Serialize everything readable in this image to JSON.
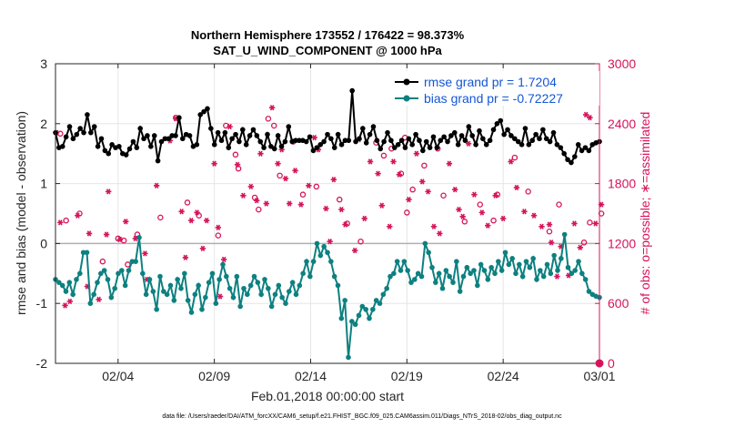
{
  "chart_data": {
    "type": "line",
    "title_line1": "Northern Hemisphere 173552 / 176422 = 98.373%",
    "title_line2": "SAT_U_WIND_COMPONENT @ 1000 hPa",
    "xlabel": "Feb.01,2018 00:00:00 start",
    "ylabel_left": "rmse and bias (model - observation)",
    "ylabel_right": "# of obs: o=possible; ∗=assimilated",
    "footer": "data file: /Users/raeder/DAI/ATM_forcXX/CAM6_setup/f.e21.FHIST_BGC.f09_025.CAM6assim.011/Diags_NTrS_2018-02/obs_diag_output.nc",
    "x_range_days": [
      0.25,
      28.5
    ],
    "x_ticks": [
      {
        "day": 3.5,
        "label": "02/04"
      },
      {
        "day": 8.5,
        "label": "02/09"
      },
      {
        "day": 13.5,
        "label": "02/14"
      },
      {
        "day": 18.5,
        "label": "02/19"
      },
      {
        "day": 23.5,
        "label": "02/24"
      },
      {
        "day": 28.5,
        "label": "03/01"
      }
    ],
    "ylim_left": [
      -2,
      3
    ],
    "yticks_left": [
      "-2",
      "-1",
      "0",
      "1",
      "2",
      "3"
    ],
    "ylim_right": [
      0,
      3000
    ],
    "yticks_right": [
      "0",
      "600",
      "1200",
      "1800",
      "2400",
      "3000"
    ],
    "colors": {
      "rmse": "#000000",
      "bias": "#0e8080",
      "obs": "#d6145a",
      "legend_text": "#1456d6",
      "axis": "#262626",
      "zero_line": "#b0b0b0"
    },
    "series": [
      {
        "name": "rmse grand pr = 1.7204",
        "values": [
          1.85,
          1.6,
          1.62,
          1.78,
          1.95,
          1.75,
          1.82,
          1.92,
          1.85,
          2.15,
          1.85,
          1.95,
          1.62,
          1.75,
          1.55,
          1.5,
          1.65,
          1.6,
          1.62,
          1.5,
          1.48,
          1.58,
          1.7,
          1.6,
          1.92,
          1.75,
          1.8,
          1.62,
          1.8,
          1.38,
          1.7,
          1.75,
          1.75,
          1.8,
          1.8,
          2.1,
          1.75,
          1.82,
          1.8,
          1.62,
          1.65,
          2.15,
          2.2,
          2.25,
          1.92,
          1.65,
          1.85,
          1.72,
          1.85,
          1.6,
          1.75,
          1.82,
          1.7,
          1.9,
          1.65,
          1.8,
          1.9,
          1.8,
          1.7,
          1.6,
          1.82,
          1.62,
          1.58,
          1.8,
          1.62,
          1.7,
          1.95,
          1.7,
          1.72,
          1.72,
          1.72,
          1.7,
          1.78,
          1.55,
          1.6,
          1.65,
          1.7,
          1.82,
          1.75,
          1.6,
          1.82,
          1.65,
          1.72,
          1.72,
          2.55,
          1.7,
          1.75,
          1.92,
          1.68,
          1.82,
          1.95,
          1.72,
          1.58,
          1.7,
          1.85,
          1.72,
          1.6,
          1.65,
          1.72,
          1.6,
          1.75,
          1.65,
          1.82,
          1.72,
          1.55,
          1.7,
          1.6,
          1.78,
          1.6,
          1.72,
          1.78,
          1.7,
          1.8,
          1.85,
          1.65,
          1.8,
          1.72,
          1.95,
          1.8,
          1.65,
          1.88,
          1.75,
          1.65,
          1.72,
          1.9,
          2.0,
          2.05,
          1.82,
          1.9,
          1.8,
          1.75,
          1.7,
          1.65,
          1.92,
          1.65,
          1.72,
          1.82,
          1.75,
          1.9,
          1.75,
          1.7,
          1.85,
          1.65,
          1.6,
          1.5,
          1.4,
          1.35,
          1.45,
          1.65,
          1.55,
          1.6,
          1.55,
          1.65,
          1.68,
          1.7
        ]
      },
      {
        "name": "bias grand pr = -0.72227",
        "values": [
          -0.6,
          -0.65,
          -0.7,
          -0.8,
          -0.65,
          -0.85,
          -0.6,
          -0.5,
          -0.15,
          -0.15,
          -1.0,
          -0.85,
          -0.65,
          -0.5,
          -0.45,
          -0.6,
          -0.9,
          -0.75,
          -0.5,
          -0.45,
          -0.7,
          -0.45,
          -0.3,
          -0.3,
          0.1,
          -0.5,
          -0.85,
          -0.6,
          -0.8,
          -1.1,
          -0.55,
          -0.8,
          -0.85,
          -0.7,
          -0.95,
          -0.6,
          -0.75,
          -0.5,
          -0.95,
          -1.15,
          -0.85,
          -0.7,
          -1.1,
          -0.9,
          -0.65,
          -0.5,
          -1.0,
          -0.6,
          -0.35,
          -0.55,
          -0.75,
          -0.9,
          -0.55,
          -1.05,
          -0.75,
          -0.85,
          -0.7,
          -0.55,
          -0.65,
          -0.85,
          -0.6,
          -0.75,
          -1.05,
          -0.85,
          -0.7,
          -0.9,
          -1.0,
          -0.8,
          -0.65,
          -0.85,
          -0.7,
          -0.5,
          -0.3,
          -0.55,
          -0.3,
          0.0,
          -0.2,
          -0.05,
          -0.15,
          -0.3,
          -0.55,
          -0.7,
          -1.25,
          -0.95,
          -1.9,
          -1.3,
          -1.35,
          -1.2,
          -1.05,
          -1.1,
          -1.25,
          -1.1,
          -0.95,
          -1.0,
          -0.85,
          -0.75,
          -0.55,
          -0.5,
          -0.3,
          -0.45,
          -0.3,
          -0.45,
          -0.65,
          -0.6,
          -0.5,
          -0.55,
          0.0,
          -0.15,
          -0.4,
          -0.65,
          -0.5,
          -0.75,
          -0.45,
          -0.55,
          -0.65,
          -0.3,
          -0.8,
          -0.55,
          -0.4,
          -0.5,
          -0.45,
          -0.7,
          -0.35,
          -0.45,
          -0.6,
          -0.4,
          -0.5,
          -0.3,
          -0.45,
          -0.15,
          -0.35,
          -0.25,
          -0.5,
          -0.35,
          -0.55,
          -0.3,
          -0.4,
          -0.25,
          -0.6,
          -0.45,
          -0.55,
          -0.35,
          -0.5,
          -0.2,
          -0.45,
          -0.25,
          0.15,
          -0.4,
          -0.5,
          -0.45,
          -0.3,
          -0.5,
          -0.6,
          -0.8,
          -0.85,
          -0.88,
          -0.9
        ]
      }
    ],
    "obs_possible": [
      [
        0.5,
        2300
      ],
      [
        0.8,
        1430
      ],
      [
        1.5,
        1500
      ],
      [
        2.7,
        1020
      ],
      [
        3.5,
        1250
      ],
      [
        3.8,
        1230
      ],
      [
        4.0,
        990
      ],
      [
        4.5,
        1290
      ],
      [
        5.7,
        1460
      ],
      [
        6.5,
        2460
      ],
      [
        7.1,
        1610
      ],
      [
        7.7,
        1480
      ],
      [
        8.7,
        1280
      ],
      [
        9.1,
        2380
      ],
      [
        9.6,
        2090
      ],
      [
        9.75,
        1950
      ],
      [
        10.6,
        1660
      ],
      [
        10.8,
        1540
      ],
      [
        11.3,
        2450
      ],
      [
        11.6,
        2380
      ],
      [
        11.9,
        1880
      ],
      [
        12.6,
        2220
      ],
      [
        13.1,
        1690
      ],
      [
        13.8,
        1770
      ],
      [
        15.0,
        1640
      ],
      [
        15.4,
        1400
      ],
      [
        16.1,
        1220
      ],
      [
        16.9,
        2210
      ],
      [
        17.3,
        2080
      ],
      [
        17.7,
        2150
      ],
      [
        18.2,
        1900
      ],
      [
        18.4,
        2260
      ],
      [
        18.5,
        1510
      ],
      [
        18.8,
        1740
      ],
      [
        19.4,
        1980
      ],
      [
        20.1,
        2150
      ],
      [
        20.4,
        1680
      ],
      [
        21.5,
        1420
      ],
      [
        22.3,
        1590
      ],
      [
        23.0,
        1430
      ],
      [
        23.2,
        1690
      ],
      [
        24.1,
        2060
      ],
      [
        24.8,
        1720
      ],
      [
        25.9,
        1320
      ],
      [
        26.4,
        1590
      ],
      [
        27.7,
        1210
      ],
      [
        28.0,
        1410
      ],
      [
        28.6,
        1500
      ]
    ],
    "obs_assimilated": [
      [
        0.3,
        2310
      ],
      [
        0.5,
        1410
      ],
      [
        0.75,
        580
      ],
      [
        1.0,
        620
      ],
      [
        1.4,
        1480
      ],
      [
        1.9,
        770
      ],
      [
        2.0,
        1300
      ],
      [
        2.5,
        640
      ],
      [
        2.9,
        1290
      ],
      [
        3.0,
        1720
      ],
      [
        3.6,
        1240
      ],
      [
        3.9,
        1420
      ],
      [
        4.4,
        1250
      ],
      [
        4.9,
        1100
      ],
      [
        5.0,
        840
      ],
      [
        5.5,
        1780
      ],
      [
        6.2,
        2230
      ],
      [
        6.5,
        2450
      ],
      [
        6.8,
        1520
      ],
      [
        7.0,
        1060
      ],
      [
        7.3,
        1430
      ],
      [
        7.6,
        1510
      ],
      [
        7.9,
        1150
      ],
      [
        8.1,
        1430
      ],
      [
        8.5,
        2000
      ],
      [
        8.7,
        1360
      ],
      [
        8.8,
        670
      ],
      [
        9.0,
        1040
      ],
      [
        9.3,
        2370
      ],
      [
        9.7,
        1990
      ],
      [
        10.0,
        1680
      ],
      [
        10.4,
        1770
      ],
      [
        10.7,
        1630
      ],
      [
        10.9,
        2100
      ],
      [
        11.2,
        1600
      ],
      [
        11.5,
        2560
      ],
      [
        11.8,
        2000
      ],
      [
        12.0,
        2140
      ],
      [
        12.2,
        1850
      ],
      [
        12.4,
        1600
      ],
      [
        12.7,
        1930
      ],
      [
        13.0,
        1590
      ],
      [
        13.4,
        1780
      ],
      [
        13.7,
        2260
      ],
      [
        13.9,
        2140
      ],
      [
        14.3,
        1550
      ],
      [
        14.5,
        1220
      ],
      [
        14.7,
        1840
      ],
      [
        15.1,
        1540
      ],
      [
        15.3,
        1390
      ],
      [
        15.8,
        1130
      ],
      [
        16.0,
        2240
      ],
      [
        16.3,
        1450
      ],
      [
        16.6,
        2020
      ],
      [
        17.0,
        1900
      ],
      [
        17.2,
        1580
      ],
      [
        17.6,
        1370
      ],
      [
        17.8,
        2020
      ],
      [
        18.1,
        1890
      ],
      [
        18.6,
        1640
      ],
      [
        19.0,
        2100
      ],
      [
        19.3,
        1820
      ],
      [
        19.6,
        1720
      ],
      [
        19.9,
        1370
      ],
      [
        20.2,
        1300
      ],
      [
        20.7,
        2000
      ],
      [
        21.0,
        1740
      ],
      [
        21.2,
        1540
      ],
      [
        21.4,
        1470
      ],
      [
        21.7,
        2200
      ],
      [
        22.0,
        1690
      ],
      [
        22.4,
        1510
      ],
      [
        22.7,
        1380
      ],
      [
        23.1,
        1680
      ],
      [
        23.5,
        1450
      ],
      [
        23.9,
        2020
      ],
      [
        24.2,
        1760
      ],
      [
        24.6,
        1520
      ],
      [
        25.1,
        1480
      ],
      [
        25.5,
        1370
      ],
      [
        25.9,
        1390
      ],
      [
        26.0,
        1210
      ],
      [
        26.3,
        870
      ],
      [
        26.5,
        1170
      ],
      [
        26.9,
        880
      ],
      [
        27.2,
        1400
      ],
      [
        27.5,
        1160
      ],
      [
        27.8,
        2490
      ],
      [
        28.0,
        2460
      ],
      [
        28.3,
        1400
      ],
      [
        28.6,
        1590
      ]
    ]
  }
}
